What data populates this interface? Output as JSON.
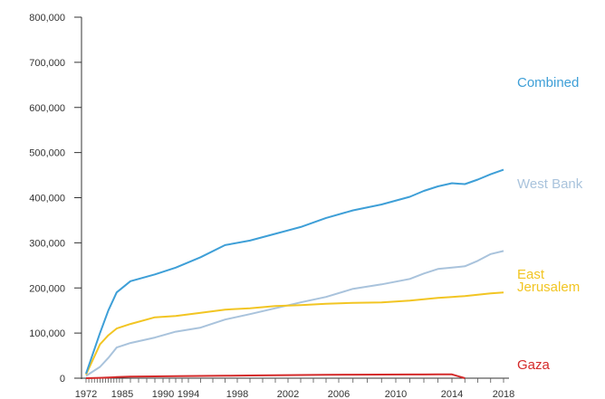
{
  "chart_data": {
    "type": "line",
    "title": "",
    "xlabel": "",
    "ylabel": "",
    "xlim": [
      1972,
      2018
    ],
    "ylim": [
      0,
      800000
    ],
    "x_ticks": [
      "1972",
      "1985",
      "1990",
      "1994",
      "1998",
      "2002",
      "2006",
      "2010",
      "2014",
      "2018"
    ],
    "y_ticks": [
      "0",
      "100,000",
      "200,000",
      "300,000",
      "400,000",
      "500,000",
      "600,000",
      "700,000",
      "800,000"
    ],
    "grid": false,
    "legend": "inline-right",
    "series": [
      {
        "name": "Combined",
        "label_lines": [
          "Combined"
        ],
        "color": "#3e9fd7",
        "points": [
          [
            1972,
            10000
          ],
          [
            1977,
            100000
          ],
          [
            1980,
            150000
          ],
          [
            1983,
            190000
          ],
          [
            1986,
            215000
          ],
          [
            1989,
            230000
          ],
          [
            1992,
            245000
          ],
          [
            1995,
            268000
          ],
          [
            1997,
            295000
          ],
          [
            1999,
            305000
          ],
          [
            2001,
            320000
          ],
          [
            2003,
            335000
          ],
          [
            2005,
            355000
          ],
          [
            2007,
            372000
          ],
          [
            2009,
            385000
          ],
          [
            2011,
            402000
          ],
          [
            2012,
            415000
          ],
          [
            2013,
            425000
          ],
          [
            2014,
            432000
          ],
          [
            2015,
            430000
          ],
          [
            2016,
            440000
          ],
          [
            2017,
            452000
          ],
          [
            2018,
            462000
          ]
        ]
      },
      {
        "name": "West Bank",
        "label_lines": [
          "West Bank"
        ],
        "color": "#a9c3dc",
        "points": [
          [
            1972,
            5000
          ],
          [
            1977,
            25000
          ],
          [
            1980,
            45000
          ],
          [
            1983,
            68000
          ],
          [
            1986,
            78000
          ],
          [
            1989,
            90000
          ],
          [
            1992,
            103000
          ],
          [
            1995,
            112000
          ],
          [
            1997,
            130000
          ],
          [
            1999,
            142000
          ],
          [
            2001,
            155000
          ],
          [
            2003,
            168000
          ],
          [
            2005,
            180000
          ],
          [
            2007,
            198000
          ],
          [
            2009,
            208000
          ],
          [
            2011,
            220000
          ],
          [
            2012,
            232000
          ],
          [
            2013,
            242000
          ],
          [
            2014,
            245000
          ],
          [
            2015,
            248000
          ],
          [
            2016,
            260000
          ],
          [
            2017,
            275000
          ],
          [
            2018,
            282000
          ]
        ]
      },
      {
        "name": "East Jerusalem",
        "label_lines": [
          "East",
          "Jerusalem"
        ],
        "color": "#f2c523",
        "points": [
          [
            1972,
            8000
          ],
          [
            1977,
            75000
          ],
          [
            1980,
            95000
          ],
          [
            1983,
            110000
          ],
          [
            1986,
            120000
          ],
          [
            1989,
            135000
          ],
          [
            1992,
            138000
          ],
          [
            1995,
            145000
          ],
          [
            1997,
            152000
          ],
          [
            1999,
            155000
          ],
          [
            2001,
            160000
          ],
          [
            2003,
            162000
          ],
          [
            2005,
            165000
          ],
          [
            2007,
            167000
          ],
          [
            2009,
            168000
          ],
          [
            2011,
            172000
          ],
          [
            2012,
            175000
          ],
          [
            2013,
            178000
          ],
          [
            2014,
            180000
          ],
          [
            2015,
            182000
          ],
          [
            2016,
            185000
          ],
          [
            2017,
            188000
          ],
          [
            2018,
            190000
          ]
        ]
      },
      {
        "name": "Gaza",
        "label_lines": [
          "Gaza"
        ],
        "color": "#d42a2a",
        "points": [
          [
            1972,
            0
          ],
          [
            1977,
            800
          ],
          [
            1980,
            1500
          ],
          [
            1983,
            2500
          ],
          [
            1986,
            3500
          ],
          [
            1989,
            4000
          ],
          [
            1992,
            4500
          ],
          [
            1995,
            5000
          ],
          [
            1997,
            5500
          ],
          [
            1999,
            6000
          ],
          [
            2001,
            6500
          ],
          [
            2003,
            7000
          ],
          [
            2005,
            7500
          ],
          [
            2007,
            7800
          ],
          [
            2009,
            8000
          ],
          [
            2011,
            8200
          ],
          [
            2012,
            8300
          ],
          [
            2013,
            8400
          ],
          [
            2014,
            8500
          ],
          [
            2015,
            0
          ]
        ]
      }
    ]
  }
}
